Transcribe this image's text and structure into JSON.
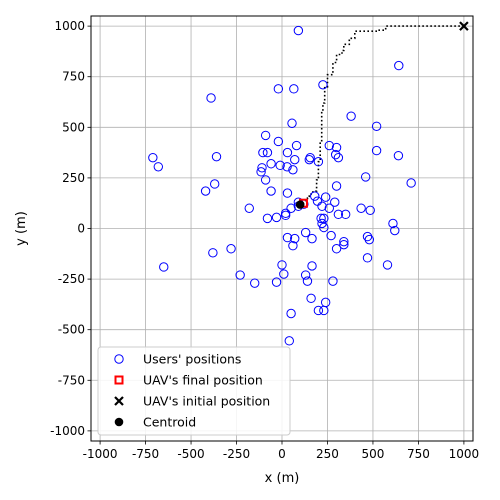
{
  "chart_data": {
    "type": "scatter",
    "xlabel": "x (m)",
    "ylabel": "y (m)",
    "xlim": [
      -1050,
      1050
    ],
    "ylim": [
      -1050,
      1050
    ],
    "xticks": [
      -1000,
      -750,
      -500,
      -250,
      0,
      250,
      500,
      750,
      1000
    ],
    "yticks": [
      -1000,
      -750,
      -500,
      -250,
      0,
      250,
      500,
      750,
      1000
    ],
    "grid": true,
    "legend_position": "lower-left",
    "colors": {
      "users": "#0000ff",
      "uav_final": "#ff0000",
      "trajectory": "#000000"
    },
    "series": [
      {
        "name": "Users' positions",
        "marker": "open-circle",
        "x": [
          90,
          642,
          -20,
          65,
          225,
          -390,
          -360,
          55,
          380,
          520,
          -710,
          -680,
          -90,
          -20,
          80,
          260,
          300,
          155,
          200,
          -80,
          -105,
          30,
          70,
          150,
          295,
          520,
          310,
          640,
          -370,
          -10,
          28,
          60,
          460,
          710,
          -110,
          -60,
          -115,
          -90,
          300,
          180,
          -420,
          -60,
          30,
          240,
          195,
          290,
          90,
          120,
          90,
          220,
          50,
          260,
          350,
          310,
          435,
          485,
          20,
          20,
          215,
          -180,
          -80,
          -30,
          220,
          230,
          610,
          620,
          270,
          340,
          130,
          340,
          300,
          480,
          470,
          165,
          70,
          30,
          60,
          0,
          -280,
          580,
          -380,
          -650,
          165,
          10,
          130,
          470,
          -230,
          140,
          -30,
          280,
          -150,
          160,
          240,
          50,
          230,
          200,
          230,
          40
        ],
        "y": [
          978,
          805,
          690,
          690,
          710,
          645,
          355,
          520,
          555,
          505,
          350,
          305,
          460,
          430,
          410,
          410,
          400,
          350,
          330,
          375,
          375,
          375,
          340,
          340,
          365,
          385,
          350,
          360,
          220,
          312,
          305,
          290,
          255,
          225,
          300,
          320,
          280,
          240,
          210,
          160,
          185,
          185,
          175,
          155,
          135,
          130,
          130,
          120,
          110,
          110,
          100,
          100,
          70,
          70,
          100,
          90,
          75,
          65,
          50,
          100,
          50,
          55,
          25,
          50,
          25,
          -10,
          -35,
          -65,
          -20,
          -80,
          -100,
          -55,
          -40,
          -50,
          -50,
          -45,
          -85,
          -180,
          -100,
          -180,
          -120,
          -190,
          -185,
          -225,
          -230,
          -145,
          -230,
          -260,
          -265,
          -260,
          -270,
          -345,
          -365,
          -420,
          -405,
          -405,
          5,
          -555
        ]
      },
      {
        "name": "UAV's final position",
        "marker": "open-square",
        "x": [
          118
        ],
        "y": [
          125
        ]
      },
      {
        "name": "UAV's initial position",
        "marker": "x",
        "x": [
          1000
        ],
        "y": [
          1000
        ]
      },
      {
        "name": "Centroid",
        "marker": "filled-circle",
        "x": [
          100
        ],
        "y": [
          118
        ]
      }
    ],
    "trajectory": {
      "x": [
        1000,
        570,
        570,
        530,
        530,
        400,
        400,
        370,
        370,
        340,
        340,
        330,
        330,
        300,
        300,
        280,
        280,
        250,
        250,
        235,
        235,
        225,
        225,
        218,
        218,
        210,
        210,
        200,
        200,
        190,
        190,
        170,
        170,
        160,
        160,
        150,
        150,
        140,
        140,
        130,
        130,
        118
      ],
      "y": [
        1000,
        1000,
        980,
        980,
        975,
        975,
        940,
        940,
        910,
        910,
        880,
        880,
        860,
        860,
        820,
        820,
        760,
        760,
        700,
        700,
        620,
        620,
        580,
        580,
        430,
        430,
        330,
        330,
        240,
        240,
        185,
        185,
        170,
        170,
        160,
        160,
        150,
        150,
        140,
        140,
        130,
        125
      ]
    }
  }
}
